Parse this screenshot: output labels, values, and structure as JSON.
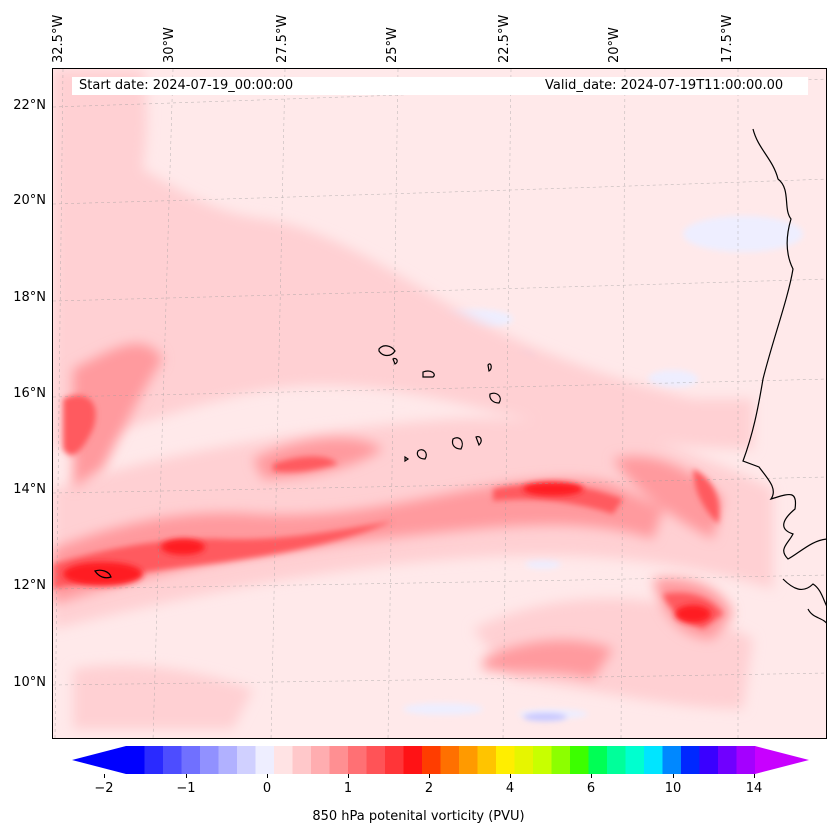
{
  "map": {
    "lon_labels": [
      "32.5°W",
      "30°W",
      "27.5°W",
      "25°W",
      "22.5°W",
      "20°W",
      "17.5°W"
    ],
    "lat_labels": [
      "22°N",
      "20°N",
      "18°N",
      "16°N",
      "14°N",
      "12°N",
      "10°N"
    ],
    "start_date": "Start date: 2024-07-19_00:00:00",
    "valid_date": "Valid_date: 2024-07-19T11:00:00.00",
    "colors": {
      "background": "#ffe9ea",
      "low": "#ffd0d3",
      "mid": "#ff9a9e",
      "high": "#ff5a5e",
      "peak": "#ff1f23",
      "negative": "#eeeeff",
      "negative_deep": "#c8c8ff",
      "coast": "#000000"
    }
  },
  "colorbar": {
    "label": "850 hPa potenital vorticity (PVU)",
    "tick_labels": [
      "−2",
      "−1",
      "0",
      "1",
      "2",
      "4",
      "6",
      "10",
      "14"
    ],
    "colors": [
      "#0000ff",
      "#2a2aff",
      "#4d4dff",
      "#7070ff",
      "#9191ff",
      "#b1b1ff",
      "#d0d0ff",
      "#eeeeff",
      "#ffe3e4",
      "#ffc8ca",
      "#ffadb0",
      "#ff8f92",
      "#ff7074",
      "#ff5357",
      "#ff3538",
      "#ff1215",
      "#ff3d00",
      "#ff7000",
      "#ff9a00",
      "#ffc400",
      "#ffee00",
      "#e6f500",
      "#c8ff00",
      "#8cff00",
      "#3cff00",
      "#00ff55",
      "#00ff9a",
      "#00ffcf",
      "#00e5ff",
      "#0088ff",
      "#0028ff",
      "#3a00ff",
      "#7000ff",
      "#a400ff"
    ],
    "under_color": "#0000ff",
    "over_color": "#c800ff"
  }
}
